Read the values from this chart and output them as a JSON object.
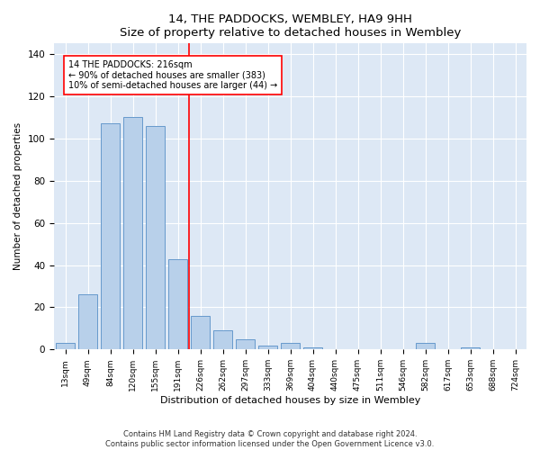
{
  "title1": "14, THE PADDOCKS, WEMBLEY, HA9 9HH",
  "title2": "Size of property relative to detached houses in Wembley",
  "xlabel": "Distribution of detached houses by size in Wembley",
  "ylabel": "Number of detached properties",
  "bar_labels": [
    "13sqm",
    "49sqm",
    "84sqm",
    "120sqm",
    "155sqm",
    "191sqm",
    "226sqm",
    "262sqm",
    "297sqm",
    "333sqm",
    "369sqm",
    "404sqm",
    "440sqm",
    "475sqm",
    "511sqm",
    "546sqm",
    "582sqm",
    "617sqm",
    "653sqm",
    "688sqm",
    "724sqm"
  ],
  "bar_values": [
    3,
    26,
    107,
    110,
    106,
    43,
    16,
    9,
    5,
    2,
    3,
    1,
    0,
    0,
    0,
    0,
    3,
    0,
    1,
    0,
    0
  ],
  "bar_color": "#b8d0ea",
  "bar_edge_color": "#6699cc",
  "vline_x": 5.5,
  "vline_color": "red",
  "annotation_line1": "14 THE PADDOCKS: 216sqm",
  "annotation_line2": "← 90% of detached houses are smaller (383)",
  "annotation_line3": "10% of semi-detached houses are larger (44) →",
  "ylim": [
    0,
    145
  ],
  "yticks": [
    0,
    20,
    40,
    60,
    80,
    100,
    120,
    140
  ],
  "bg_color": "#dde8f5",
  "grid_color": "white",
  "footer1": "Contains HM Land Registry data © Crown copyright and database right 2024.",
  "footer2": "Contains public sector information licensed under the Open Government Licence v3.0."
}
